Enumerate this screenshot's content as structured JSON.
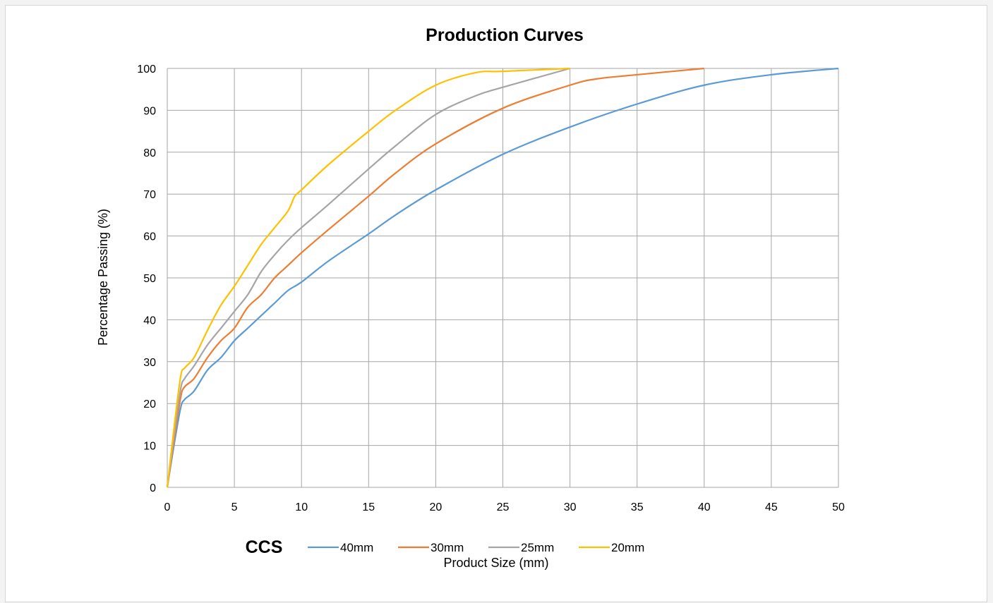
{
  "chart_data": {
    "type": "line",
    "title": "Production Curves",
    "xlabel": "Product Size (mm)",
    "ylabel": "Percentage Passing (%)",
    "xlim": [
      0,
      50
    ],
    "ylim": [
      0,
      100
    ],
    "xticks": [
      0,
      5,
      10,
      15,
      20,
      25,
      30,
      35,
      40,
      45,
      50
    ],
    "yticks": [
      0,
      10,
      20,
      30,
      40,
      50,
      60,
      70,
      80,
      90,
      100
    ],
    "grid": true,
    "legend_title": "CCS",
    "legend_position": "bottom",
    "series": [
      {
        "name": "40mm",
        "color": "#5b9bd5",
        "points": [
          [
            0,
            0
          ],
          [
            0.5,
            10
          ],
          [
            1,
            19
          ],
          [
            1.3,
            21
          ],
          [
            2,
            23
          ],
          [
            3,
            28
          ],
          [
            4,
            31
          ],
          [
            5,
            35
          ],
          [
            6,
            38
          ],
          [
            7,
            41
          ],
          [
            8,
            44
          ],
          [
            9,
            47
          ],
          [
            10,
            49
          ],
          [
            12,
            54
          ],
          [
            15,
            60.5
          ],
          [
            17,
            65
          ],
          [
            20,
            71
          ],
          [
            25,
            79.5
          ],
          [
            30,
            86
          ],
          [
            35,
            91.5
          ],
          [
            40,
            96
          ],
          [
            45,
            98.5
          ],
          [
            50,
            100
          ]
        ]
      },
      {
        "name": "30mm",
        "color": "#ed7d31",
        "points": [
          [
            0,
            0
          ],
          [
            0.5,
            11
          ],
          [
            1,
            21.5
          ],
          [
            1.3,
            24
          ],
          [
            2,
            26
          ],
          [
            3,
            31
          ],
          [
            4,
            35
          ],
          [
            5,
            38
          ],
          [
            6,
            43
          ],
          [
            7,
            46
          ],
          [
            8,
            50
          ],
          [
            9,
            53
          ],
          [
            10,
            56
          ],
          [
            12,
            61.5
          ],
          [
            15,
            69.5
          ],
          [
            17,
            75
          ],
          [
            20,
            82
          ],
          [
            25,
            90.5
          ],
          [
            30,
            96
          ],
          [
            32,
            97.5
          ],
          [
            35,
            98.5
          ],
          [
            40,
            100
          ]
        ]
      },
      {
        "name": "25mm",
        "color": "#a5a5a5",
        "points": [
          [
            0,
            0
          ],
          [
            0.5,
            12
          ],
          [
            1,
            23.5
          ],
          [
            1.3,
            26
          ],
          [
            2,
            29
          ],
          [
            3,
            34
          ],
          [
            4,
            38
          ],
          [
            5,
            42
          ],
          [
            6,
            46
          ],
          [
            7,
            51.5
          ],
          [
            8,
            55.5
          ],
          [
            9,
            59
          ],
          [
            10,
            62
          ],
          [
            12,
            67.5
          ],
          [
            15,
            76
          ],
          [
            17,
            81.5
          ],
          [
            20,
            89
          ],
          [
            23,
            93.5
          ],
          [
            25,
            95.5
          ],
          [
            30,
            100
          ]
        ]
      },
      {
        "name": "20mm",
        "color": "#ffc000",
        "points": [
          [
            0,
            0
          ],
          [
            0.5,
            14
          ],
          [
            1,
            26.5
          ],
          [
            1.3,
            28.5
          ],
          [
            2,
            31
          ],
          [
            3,
            37.5
          ],
          [
            4,
            43.5
          ],
          [
            5,
            48
          ],
          [
            6,
            53
          ],
          [
            7,
            58
          ],
          [
            8,
            62
          ],
          [
            9,
            66
          ],
          [
            9.5,
            69.5
          ],
          [
            10,
            71
          ],
          [
            12,
            77
          ],
          [
            15,
            85
          ],
          [
            17,
            90
          ],
          [
            20,
            96
          ],
          [
            23,
            99
          ],
          [
            25,
            99.3
          ],
          [
            30,
            100
          ]
        ]
      }
    ]
  }
}
